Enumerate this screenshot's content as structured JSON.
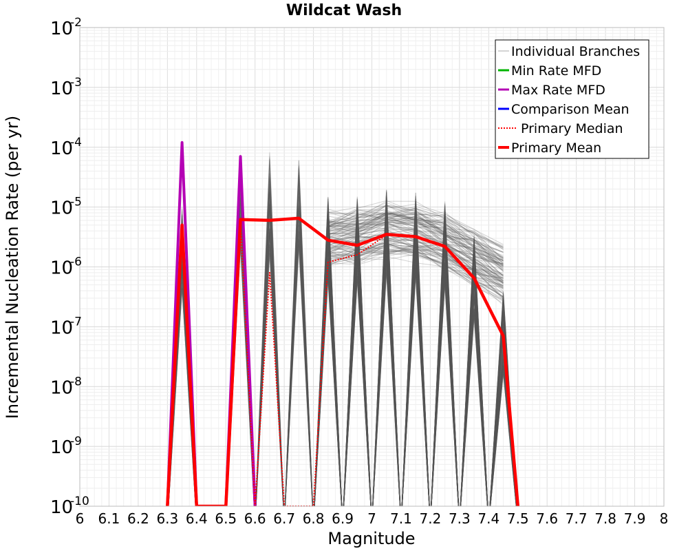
{
  "chart_data": {
    "type": "line",
    "title": "Wildcat Wash",
    "xlabel": "Magnitude",
    "ylabel": "Incremental Nucleation Rate (per yr)",
    "xlim": [
      6.0,
      8.0
    ],
    "ylim": [
      1e-10,
      0.01
    ],
    "y_scale": "log",
    "grid": true,
    "legend_position": "top-right",
    "x_ticks": [
      6,
      6.1,
      6.2,
      6.3,
      6.4,
      6.5,
      6.6,
      6.7,
      6.8,
      6.9,
      7,
      7.1,
      7.2,
      7.3,
      7.4,
      7.5,
      7.6,
      7.7,
      7.8,
      7.9,
      8
    ],
    "x_tick_labels": [
      "6",
      "6.1",
      "6.2",
      "6.3",
      "6.4",
      "6.5",
      "6.6",
      "6.7",
      "6.8",
      "6.9",
      "7",
      "7.1",
      "7.2",
      "7.3",
      "7.4",
      "7.5",
      "7.6",
      "7.7",
      "7.8",
      "7.9",
      "8"
    ],
    "y_ticks": [
      {
        "base": "10",
        "exp": "-10",
        "value": 1e-10
      },
      {
        "base": "10",
        "exp": "-9",
        "value": 1e-09
      },
      {
        "base": "10",
        "exp": "-8",
        "value": 1e-08
      },
      {
        "base": "10",
        "exp": "-7",
        "value": 1e-07
      },
      {
        "base": "10",
        "exp": "-6",
        "value": 1e-06
      },
      {
        "base": "10",
        "exp": "-5",
        "value": 1e-05
      },
      {
        "base": "10",
        "exp": "-4",
        "value": 0.0001
      },
      {
        "base": "10",
        "exp": "-3",
        "value": 0.001
      },
      {
        "base": "10",
        "exp": "-2",
        "value": 0.01
      }
    ],
    "series": [
      {
        "name": "Individual Branches",
        "color": "#555555",
        "style": "thin",
        "note_count_sampled": 180,
        "x": [
          6.35,
          6.55,
          6.65,
          6.75,
          6.85,
          6.95,
          7.05,
          7.15,
          7.25,
          7.35,
          7.45
        ],
        "values": [
          2e-06,
          1e-05,
          8e-06,
          1e-05,
          3e-06,
          3e-06,
          4e-06,
          3.5e-06,
          2.5e-06,
          7e-07,
          8e-08
        ]
      },
      {
        "name": "Min Rate MFD",
        "color": "#00b400",
        "style": "solid",
        "x": [],
        "values": []
      },
      {
        "name": "Max Rate MFD",
        "color": "#b400b4",
        "style": "solid",
        "x": [
          6.3,
          6.35,
          6.4,
          6.5,
          6.55,
          6.6
        ],
        "values": [
          1e-10,
          0.00012,
          1e-10,
          1e-10,
          7e-05,
          1e-10
        ]
      },
      {
        "name": "Comparison Mean",
        "color": "#0000ff",
        "style": "solid",
        "x": [],
        "values": []
      },
      {
        "name": "Primary Median",
        "color": "#ff0000",
        "style": "dotted",
        "x": [
          6.3,
          6.35,
          6.4,
          6.5,
          6.55,
          6.6,
          6.65,
          6.7,
          6.8,
          6.85,
          6.95,
          7.05,
          7.15,
          7.25,
          7.35,
          7.45,
          7.5
        ],
        "values": [
          1e-10,
          3e-06,
          1e-10,
          1e-10,
          6e-06,
          1e-10,
          8e-07,
          1e-10,
          1e-10,
          1.2e-06,
          1.6e-06,
          3.4e-06,
          3.2e-06,
          2.2e-06,
          6.5e-07,
          7e-08,
          1e-10
        ]
      },
      {
        "name": "Primary Mean",
        "color": "#ff0000",
        "style": "thick",
        "x": [
          6.3,
          6.35,
          6.4,
          6.5,
          6.55,
          6.65,
          6.75,
          6.85,
          6.95,
          7.05,
          7.15,
          7.25,
          7.35,
          7.45,
          7.5
        ],
        "values": [
          1e-10,
          5e-06,
          1e-10,
          1e-10,
          6.2e-06,
          6e-06,
          6.5e-06,
          2.8e-06,
          2.3e-06,
          3.5e-06,
          3.2e-06,
          2.2e-06,
          6.5e-07,
          7e-08,
          1e-10
        ]
      }
    ],
    "legend": [
      {
        "label": "Individual Branches",
        "color": "#aaaaaa",
        "style": "thin"
      },
      {
        "label": "Min Rate MFD",
        "color": "#00b400",
        "style": "solid"
      },
      {
        "label": "Max Rate MFD",
        "color": "#b400b4",
        "style": "solid"
      },
      {
        "label": "Comparison Mean",
        "color": "#0000ff",
        "style": "solid"
      },
      {
        "label": "Primary Median",
        "color": "#ff0000",
        "style": "dotted"
      },
      {
        "label": "Primary Mean",
        "color": "#ff0000",
        "style": "thick"
      }
    ]
  }
}
